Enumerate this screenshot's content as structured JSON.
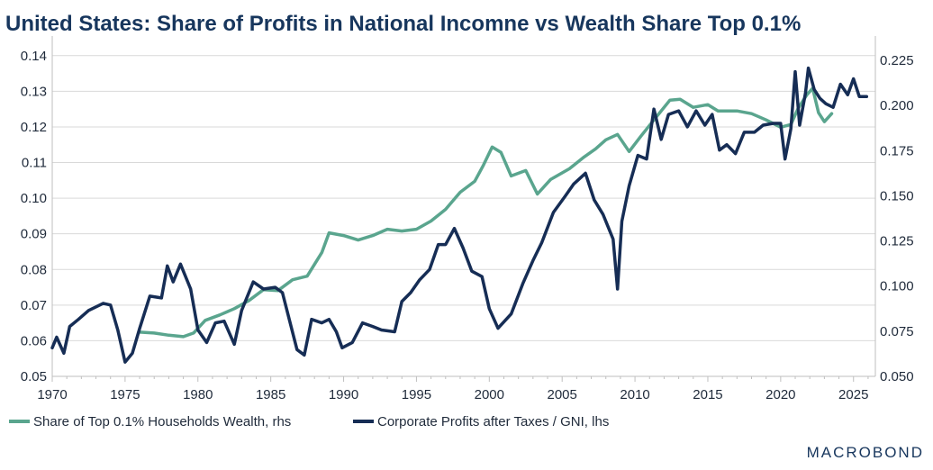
{
  "chart_data": {
    "type": "line",
    "title": "United States: Share of Profits in National Incomne vs Wealth Share Top 0.1%",
    "x_ticks": [
      "1970",
      "1975",
      "1980",
      "1985",
      "1990",
      "1995",
      "2000",
      "2005",
      "2010",
      "2015",
      "2020",
      "2025"
    ],
    "xlim": [
      1970,
      2026.5
    ],
    "left_axis": {
      "ylim": [
        0.05,
        0.145
      ],
      "ticks": [
        "0.05",
        "0.06",
        "0.07",
        "0.08",
        "0.09",
        "0.10",
        "0.11",
        "0.12",
        "0.13",
        "0.14"
      ]
    },
    "right_axis": {
      "ylim": [
        0.05,
        0.2375
      ],
      "ticks": [
        "0.050",
        "0.075",
        "0.100",
        "0.125",
        "0.150",
        "0.175",
        "0.200",
        "0.225"
      ]
    },
    "grid": "horizontal",
    "legend_position": "bottom-left",
    "series": [
      {
        "name": "Share of Top 0.1% Households Wealth, rhs",
        "axis": "right",
        "color": "#5aa58e",
        "points": [
          [
            1976.0,
            0.0745
          ],
          [
            1977.0,
            0.074
          ],
          [
            1978.0,
            0.0728
          ],
          [
            1979.0,
            0.072
          ],
          [
            1979.7,
            0.074
          ],
          [
            1980.5,
            0.081
          ],
          [
            1981.5,
            0.084
          ],
          [
            1982.5,
            0.0875
          ],
          [
            1983.5,
            0.092
          ],
          [
            1984.5,
            0.098
          ],
          [
            1985.5,
            0.0975
          ],
          [
            1986.5,
            0.1035
          ],
          [
            1987.5,
            0.1055
          ],
          [
            1988.5,
            0.1185
          ],
          [
            1989.0,
            0.1295
          ],
          [
            1990.0,
            0.128
          ],
          [
            1991.0,
            0.1255
          ],
          [
            1992.0,
            0.128
          ],
          [
            1993.0,
            0.1315
          ],
          [
            1994.0,
            0.1305
          ],
          [
            1995.0,
            0.1315
          ],
          [
            1996.0,
            0.136
          ],
          [
            1997.0,
            0.1425
          ],
          [
            1998.0,
            0.152
          ],
          [
            1999.0,
            0.158
          ],
          [
            1999.6,
            0.167
          ],
          [
            2000.2,
            0.177
          ],
          [
            2000.8,
            0.174
          ],
          [
            2001.5,
            0.161
          ],
          [
            2002.5,
            0.164
          ],
          [
            2003.3,
            0.151
          ],
          [
            2004.2,
            0.159
          ],
          [
            2005.5,
            0.165
          ],
          [
            2006.5,
            0.1715
          ],
          [
            2007.3,
            0.176
          ],
          [
            2008.0,
            0.181
          ],
          [
            2008.8,
            0.184
          ],
          [
            2009.6,
            0.1745
          ],
          [
            2010.4,
            0.183
          ],
          [
            2011.3,
            0.192
          ],
          [
            2012.4,
            0.203
          ],
          [
            2013.1,
            0.2035
          ],
          [
            2014.0,
            0.199
          ],
          [
            2015.0,
            0.2005
          ],
          [
            2015.7,
            0.197
          ],
          [
            2017.0,
            0.197
          ],
          [
            2018.0,
            0.1955
          ],
          [
            2019.0,
            0.192
          ],
          [
            2020.0,
            0.188
          ],
          [
            2020.7,
            0.1895
          ],
          [
            2021.2,
            0.1985
          ],
          [
            2021.8,
            0.206
          ],
          [
            2022.2,
            0.2095
          ],
          [
            2022.6,
            0.196
          ],
          [
            2023.0,
            0.191
          ],
          [
            2023.5,
            0.1955
          ]
        ]
      },
      {
        "name": "Corporate Profits after Taxes / GNI, lhs",
        "axis": "left",
        "color": "#162d55",
        "points": [
          [
            1970.0,
            0.058
          ],
          [
            1970.3,
            0.061
          ],
          [
            1970.8,
            0.0565
          ],
          [
            1971.2,
            0.064
          ],
          [
            1971.8,
            0.066
          ],
          [
            1972.5,
            0.0685
          ],
          [
            1973.5,
            0.0705
          ],
          [
            1974.0,
            0.07
          ],
          [
            1974.5,
            0.063
          ],
          [
            1975.0,
            0.054
          ],
          [
            1975.5,
            0.0565
          ],
          [
            1976.0,
            0.0635
          ],
          [
            1976.7,
            0.0725
          ],
          [
            1977.5,
            0.072
          ],
          [
            1977.9,
            0.081
          ],
          [
            1978.3,
            0.0765
          ],
          [
            1978.8,
            0.0815
          ],
          [
            1979.5,
            0.0745
          ],
          [
            1980.0,
            0.063
          ],
          [
            1980.6,
            0.0595
          ],
          [
            1981.2,
            0.065
          ],
          [
            1981.8,
            0.0655
          ],
          [
            1982.5,
            0.059
          ],
          [
            1983.0,
            0.0685
          ],
          [
            1983.8,
            0.0765
          ],
          [
            1984.5,
            0.0745
          ],
          [
            1985.3,
            0.075
          ],
          [
            1985.8,
            0.0735
          ],
          [
            1986.3,
            0.0655
          ],
          [
            1986.8,
            0.0575
          ],
          [
            1987.3,
            0.056
          ],
          [
            1987.8,
            0.066
          ],
          [
            1988.5,
            0.065
          ],
          [
            1989.0,
            0.066
          ],
          [
            1989.5,
            0.0625
          ],
          [
            1989.9,
            0.058
          ],
          [
            1990.6,
            0.0595
          ],
          [
            1991.3,
            0.065
          ],
          [
            1992.0,
            0.064
          ],
          [
            1992.6,
            0.063
          ],
          [
            1993.5,
            0.0625
          ],
          [
            1994.0,
            0.071
          ],
          [
            1994.6,
            0.0735
          ],
          [
            1995.2,
            0.077
          ],
          [
            1995.9,
            0.08
          ],
          [
            1996.5,
            0.087
          ],
          [
            1997.0,
            0.087
          ],
          [
            1997.6,
            0.0915
          ],
          [
            1998.2,
            0.086
          ],
          [
            1998.8,
            0.0795
          ],
          [
            1999.5,
            0.078
          ],
          [
            2000.0,
            0.069
          ],
          [
            2000.6,
            0.0635
          ],
          [
            2001.5,
            0.0675
          ],
          [
            2002.3,
            0.076
          ],
          [
            2003.0,
            0.0825
          ],
          [
            2003.6,
            0.0875
          ],
          [
            2004.4,
            0.096
          ],
          [
            2005.2,
            0.1005
          ],
          [
            2005.8,
            0.104
          ],
          [
            2006.6,
            0.107
          ],
          [
            2007.2,
            0.0995
          ],
          [
            2007.8,
            0.0955
          ],
          [
            2008.5,
            0.0885
          ],
          [
            2008.8,
            0.0745
          ],
          [
            2009.1,
            0.0935
          ],
          [
            2009.6,
            0.1035
          ],
          [
            2010.2,
            0.112
          ],
          [
            2010.8,
            0.111
          ],
          [
            2011.3,
            0.125
          ],
          [
            2011.8,
            0.1165
          ],
          [
            2012.3,
            0.1235
          ],
          [
            2013.0,
            0.1245
          ],
          [
            2013.6,
            0.12
          ],
          [
            2014.2,
            0.1245
          ],
          [
            2014.8,
            0.1205
          ],
          [
            2015.3,
            0.1235
          ],
          [
            2015.8,
            0.1135
          ],
          [
            2016.3,
            0.115
          ],
          [
            2016.9,
            0.1125
          ],
          [
            2017.5,
            0.1185
          ],
          [
            2018.2,
            0.1185
          ],
          [
            2018.8,
            0.1205
          ],
          [
            2019.5,
            0.121
          ],
          [
            2020.0,
            0.121
          ],
          [
            2020.3,
            0.111
          ],
          [
            2020.7,
            0.1195
          ],
          [
            2021.0,
            0.1355
          ],
          [
            2021.3,
            0.1205
          ],
          [
            2021.7,
            0.1295
          ],
          [
            2021.9,
            0.1365
          ],
          [
            2022.3,
            0.1305
          ],
          [
            2022.7,
            0.128
          ],
          [
            2023.1,
            0.1265
          ],
          [
            2023.6,
            0.1255
          ],
          [
            2024.1,
            0.132
          ],
          [
            2024.6,
            0.129
          ],
          [
            2025.0,
            0.1335
          ],
          [
            2025.4,
            0.1285
          ],
          [
            2025.9,
            0.1285
          ]
        ]
      }
    ],
    "legend": [
      "Share of Top 0.1% Households Wealth, rhs",
      "Corporate Profits after Taxes / GNI, lhs"
    ],
    "brand": "MACROBOND",
    "grid_color": "#d9d9d9",
    "axis_color": "#bfbfbf"
  }
}
